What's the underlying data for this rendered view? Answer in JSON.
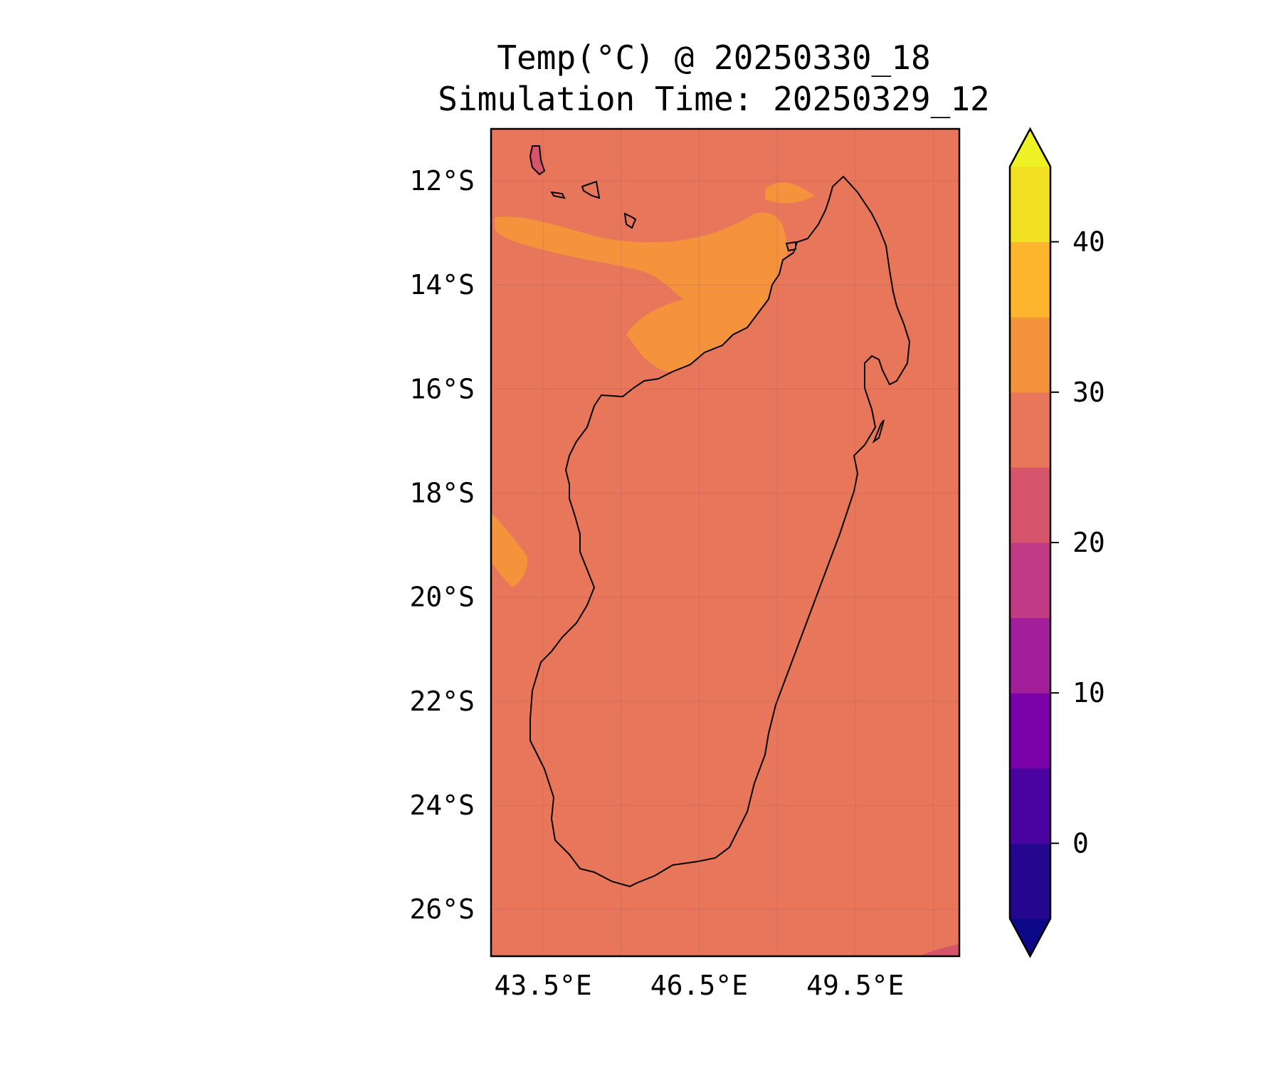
{
  "title": {
    "line1": "Temp(°C) @ 20250330_18",
    "line2": "Simulation Time: 20250329_12"
  },
  "map": {
    "extent": {
      "lon_min": 42.5,
      "lon_max": 51.5,
      "lat_min": -26.9,
      "lat_max": -11.0
    },
    "y_ticks": [
      {
        "value": -12,
        "label": "12°S"
      },
      {
        "value": -14,
        "label": "14°S"
      },
      {
        "value": -16,
        "label": "16°S"
      },
      {
        "value": -18,
        "label": "18°S"
      },
      {
        "value": -20,
        "label": "20°S"
      },
      {
        "value": -22,
        "label": "22°S"
      },
      {
        "value": -24,
        "label": "24°S"
      },
      {
        "value": -26,
        "label": "26°S"
      }
    ],
    "x_ticks": [
      {
        "value": 43.5,
        "label": "43.5°E"
      },
      {
        "value": 46.5,
        "label": "46.5°E"
      },
      {
        "value": 49.5,
        "label": "49.5°E"
      }
    ],
    "grid_lons": [
      43.5,
      45.0,
      46.5,
      48.0,
      49.5,
      51.0
    ],
    "grid_lats": [
      -12,
      -14,
      -16,
      -18,
      -20,
      -22,
      -24,
      -26
    ],
    "background_color": "#e8765a",
    "coastline_color": "#000000"
  },
  "colorbar": {
    "min": -5,
    "max": 45,
    "levels": [
      {
        "from": -5,
        "to": 0,
        "color": "#25068f"
      },
      {
        "from": 0,
        "to": 5,
        "color": "#4a03a0"
      },
      {
        "from": 5,
        "to": 10,
        "color": "#7b02a8"
      },
      {
        "from": 10,
        "to": 15,
        "color": "#a31e9a"
      },
      {
        "from": 15,
        "to": 20,
        "color": "#c03a86"
      },
      {
        "from": 20,
        "to": 25,
        "color": "#d6556d"
      },
      {
        "from": 25,
        "to": 30,
        "color": "#e8765a"
      },
      {
        "from": 30,
        "to": 35,
        "color": "#f5933c"
      },
      {
        "from": 35,
        "to": 40,
        "color": "#fcb52c"
      },
      {
        "from": 40,
        "to": 45,
        "color": "#f2e022"
      }
    ],
    "under_color": "#0d0887",
    "over_color": "#eef224",
    "ticks": [
      {
        "value": 0,
        "label": "0"
      },
      {
        "value": 10,
        "label": "10"
      },
      {
        "value": 20,
        "label": "20"
      },
      {
        "value": 30,
        "label": "30"
      },
      {
        "value": 40,
        "label": "40"
      }
    ]
  }
}
